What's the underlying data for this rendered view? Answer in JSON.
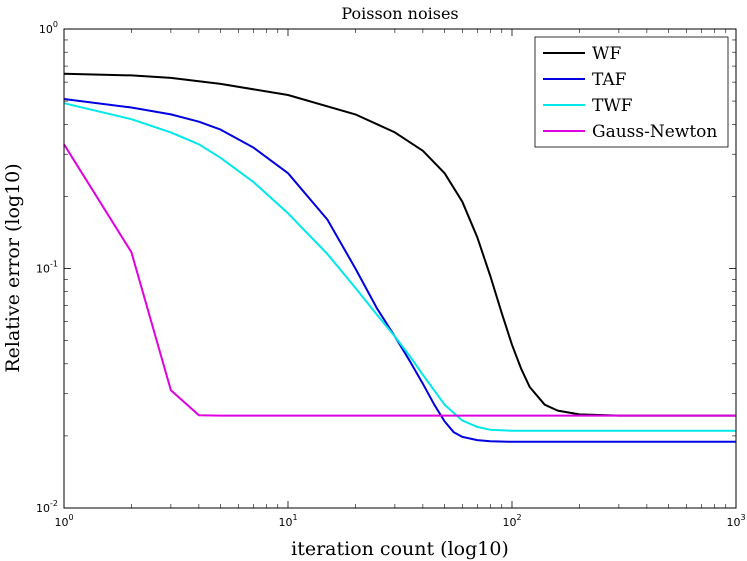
{
  "chart_data": {
    "type": "line",
    "title": "Poisson noises",
    "xlabel": "iteration count (log10)",
    "ylabel": "Relative error (log10)",
    "xscale": "log",
    "yscale": "log",
    "xlim": [
      1,
      1000
    ],
    "ylim": [
      0.01,
      1
    ],
    "x_ticks": [
      {
        "base": "10",
        "exp": "0"
      },
      {
        "base": "10",
        "exp": "1"
      },
      {
        "base": "10",
        "exp": "2"
      },
      {
        "base": "10",
        "exp": "3"
      }
    ],
    "y_ticks": [
      {
        "base": "10",
        "exp": "-2"
      },
      {
        "base": "10",
        "exp": "-1"
      },
      {
        "base": "10",
        "exp": "0"
      }
    ],
    "legend_position": "top-right",
    "series": [
      {
        "name": "WF",
        "color": "#000000",
        "points": [
          [
            1,
            0.65
          ],
          [
            2,
            0.64
          ],
          [
            3,
            0.625
          ],
          [
            5,
            0.59
          ],
          [
            10,
            0.53
          ],
          [
            20,
            0.44
          ],
          [
            30,
            0.37
          ],
          [
            40,
            0.31
          ],
          [
            50,
            0.25
          ],
          [
            60,
            0.19
          ],
          [
            70,
            0.135
          ],
          [
            80,
            0.093
          ],
          [
            90,
            0.065
          ],
          [
            100,
            0.048
          ],
          [
            110,
            0.038
          ],
          [
            120,
            0.032
          ],
          [
            140,
            0.027
          ],
          [
            160,
            0.0255
          ],
          [
            200,
            0.0246
          ],
          [
            300,
            0.0243
          ],
          [
            1000,
            0.0243
          ]
        ]
      },
      {
        "name": "TAF",
        "color": "#0000e0",
        "points": [
          [
            1,
            0.51
          ],
          [
            2,
            0.47
          ],
          [
            3,
            0.44
          ],
          [
            4,
            0.41
          ],
          [
            5,
            0.38
          ],
          [
            7,
            0.32
          ],
          [
            10,
            0.25
          ],
          [
            15,
            0.16
          ],
          [
            20,
            0.1
          ],
          [
            25,
            0.068
          ],
          [
            30,
            0.052
          ],
          [
            35,
            0.041
          ],
          [
            40,
            0.033
          ],
          [
            45,
            0.027
          ],
          [
            50,
            0.023
          ],
          [
            55,
            0.0207
          ],
          [
            60,
            0.0198
          ],
          [
            70,
            0.0192
          ],
          [
            80,
            0.019
          ],
          [
            100,
            0.0189
          ],
          [
            1000,
            0.0189
          ]
        ]
      },
      {
        "name": "TWF",
        "color": "#00e8e8",
        "points": [
          [
            1,
            0.49
          ],
          [
            2,
            0.42
          ],
          [
            3,
            0.37
          ],
          [
            4,
            0.33
          ],
          [
            5,
            0.29
          ],
          [
            7,
            0.23
          ],
          [
            10,
            0.17
          ],
          [
            15,
            0.115
          ],
          [
            20,
            0.083
          ],
          [
            25,
            0.064
          ],
          [
            30,
            0.052
          ],
          [
            35,
            0.043
          ],
          [
            40,
            0.036
          ],
          [
            50,
            0.027
          ],
          [
            60,
            0.0232
          ],
          [
            70,
            0.0218
          ],
          [
            80,
            0.0212
          ],
          [
            100,
            0.021
          ],
          [
            1000,
            0.021
          ]
        ]
      },
      {
        "name": "Gauss-Newton",
        "color": "#e000e0",
        "points": [
          [
            1,
            0.33
          ],
          [
            2,
            0.117
          ],
          [
            3,
            0.031
          ],
          [
            4,
            0.0244
          ],
          [
            5,
            0.0243
          ],
          [
            10,
            0.0243
          ],
          [
            1000,
            0.0243
          ]
        ]
      }
    ]
  }
}
